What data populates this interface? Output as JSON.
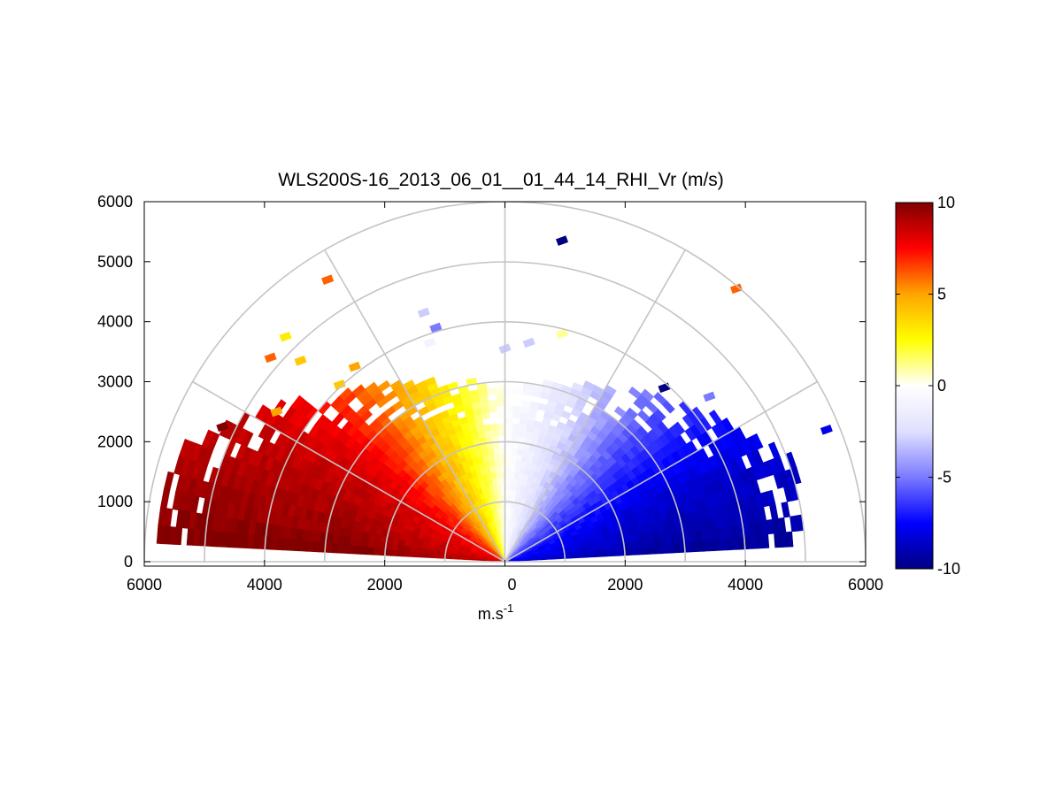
{
  "chart_data": {
    "type": "heatmap",
    "subtype": "polar-rhi-sector",
    "title": "WLS200S-16_2013_06_01__01_44_14_RHI_Vr (m/s)",
    "xlabel": "m.s",
    "xlabel_superscript": "-1",
    "ylabel": "",
    "xlim": [
      -6000,
      6000
    ],
    "ylim": [
      0,
      6000
    ],
    "x_tick_values": [
      -6000,
      -4000,
      -2000,
      0,
      2000,
      4000,
      6000
    ],
    "x_tick_labels": [
      "6000",
      "4000",
      "2000",
      "0",
      "2000",
      "4000",
      "6000"
    ],
    "y_tick_values": [
      0,
      1000,
      2000,
      3000,
      4000,
      5000,
      6000
    ],
    "y_tick_labels": [
      "0",
      "1000",
      "2000",
      "3000",
      "4000",
      "5000",
      "6000"
    ],
    "range_rings_m": [
      1000,
      2000,
      3000,
      4000,
      5000,
      6000
    ],
    "spokes_deg": [
      0,
      30,
      60,
      90,
      120,
      150,
      180
    ],
    "grid": true,
    "colorbar": {
      "vmin": -10,
      "vmax": 10,
      "tick_values": [
        10,
        5,
        0,
        -5,
        -10
      ],
      "tick_labels": [
        "10",
        "5",
        "0",
        "-5",
        "-10"
      ],
      "colors": [
        "#000080",
        "#0000ff",
        "#7a7aff",
        "#e0e0ff",
        "#ffffff",
        "#ffff00",
        "#ffa500",
        "#ff0000",
        "#800000"
      ]
    },
    "scan": {
      "elevation_range_deg": [
        3,
        177
      ],
      "elevation_step_deg": 3,
      "range_step_m": 100,
      "max_range_m": 6000,
      "beams": [
        {
          "elevation_deg": 4,
          "max_range_m": 4700,
          "vr_ms": -9.5
        },
        {
          "elevation_deg": 10,
          "max_range_m": 5100,
          "vr_ms": -9.0
        },
        {
          "elevation_deg": 20,
          "max_range_m": 5000,
          "vr_ms": -8.5
        },
        {
          "elevation_deg": 30,
          "max_range_m": 4400,
          "vr_ms": -7.5
        },
        {
          "elevation_deg": 40,
          "max_range_m": 4000,
          "vr_ms": -6.5
        },
        {
          "elevation_deg": 50,
          "max_range_m": 3700,
          "vr_ms": -5.0
        },
        {
          "elevation_deg": 60,
          "max_range_m": 3300,
          "vr_ms": -3.5
        },
        {
          "elevation_deg": 70,
          "max_range_m": 3100,
          "vr_ms": -2.2
        },
        {
          "elevation_deg": 80,
          "max_range_m": 3000,
          "vr_ms": -1.0
        },
        {
          "elevation_deg": 90,
          "max_range_m": 2950,
          "vr_ms": 0.0
        },
        {
          "elevation_deg": 100,
          "max_range_m": 3000,
          "vr_ms": 1.5
        },
        {
          "elevation_deg": 110,
          "max_range_m": 3150,
          "vr_ms": 3.0
        },
        {
          "elevation_deg": 120,
          "max_range_m": 3400,
          "vr_ms": 4.5
        },
        {
          "elevation_deg": 130,
          "max_range_m": 3700,
          "vr_ms": 6.0
        },
        {
          "elevation_deg": 140,
          "max_range_m": 4200,
          "vr_ms": 7.5
        },
        {
          "elevation_deg": 150,
          "max_range_m": 4800,
          "vr_ms": 8.5
        },
        {
          "elevation_deg": 160,
          "max_range_m": 5600,
          "vr_ms": 9.0
        },
        {
          "elevation_deg": 170,
          "max_range_m": 5800,
          "vr_ms": 9.5
        },
        {
          "elevation_deg": 176,
          "max_range_m": 5700,
          "vr_ms": 10.0
        }
      ],
      "isolated_points": [
        {
          "x": 950,
          "y": 5350,
          "vr_ms": -10
        },
        {
          "x": 3850,
          "y": 4550,
          "vr_ms": 6
        },
        {
          "x": -2950,
          "y": 4700,
          "vr_ms": 6
        },
        {
          "x": -3650,
          "y": 3750,
          "vr_ms": 3
        },
        {
          "x": -3900,
          "y": 3400,
          "vr_ms": 6
        },
        {
          "x": -3400,
          "y": 3350,
          "vr_ms": 4
        },
        {
          "x": -1350,
          "y": 4150,
          "vr_ms": -3
        },
        {
          "x": -1150,
          "y": 3900,
          "vr_ms": -5
        },
        {
          "x": 950,
          "y": 3800,
          "vr_ms": 1
        },
        {
          "x": -1250,
          "y": 3650,
          "vr_ms": -1
        },
        {
          "x": 0,
          "y": 3550,
          "vr_ms": -3
        },
        {
          "x": 400,
          "y": 3650,
          "vr_ms": -3
        },
        {
          "x": 2650,
          "y": 2900,
          "vr_ms": -10
        },
        {
          "x": 3400,
          "y": 2750,
          "vr_ms": -5
        },
        {
          "x": 5350,
          "y": 2200,
          "vr_ms": -8
        },
        {
          "x": -4700,
          "y": 2250,
          "vr_ms": 10
        },
        {
          "x": -3800,
          "y": 2500,
          "vr_ms": 5
        },
        {
          "x": -2750,
          "y": 2950,
          "vr_ms": 4
        },
        {
          "x": -2500,
          "y": 3250,
          "vr_ms": 5
        }
      ]
    }
  }
}
